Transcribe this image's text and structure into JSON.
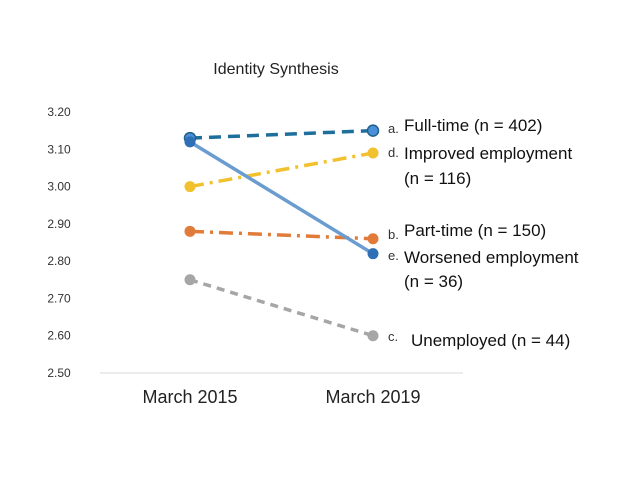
{
  "chart_data": {
    "type": "line",
    "title": "Identity Synthesis",
    "categories": [
      "March 2015",
      "March 2019"
    ],
    "ylim": [
      2.5,
      3.2
    ],
    "yticks": [
      "3.20",
      "3.10",
      "3.00",
      "2.90",
      "2.80",
      "2.70",
      "2.60",
      "2.50"
    ],
    "grid": false,
    "series": [
      {
        "letter": "a.",
        "name_lines": [
          "Full-time (n = 402)"
        ],
        "values": [
          3.13,
          3.15
        ],
        "color": "#1f6f9c",
        "marker": "#4a90d9",
        "dash": "dashed-long"
      },
      {
        "letter": "d.",
        "name_lines": [
          "Improved employment",
          "(n = 116)"
        ],
        "values": [
          3.0,
          3.09
        ],
        "color": "#f2c12e",
        "marker": "#f2c12e",
        "dash": "dash-dot"
      },
      {
        "letter": "b.",
        "name_lines": [
          "Part-time (n = 150)"
        ],
        "values": [
          2.88,
          2.86
        ],
        "color": "#e07b39",
        "marker": "#e07b39",
        "dash": "dash-dot"
      },
      {
        "letter": "e.",
        "name_lines": [
          "Worsened employment",
          "(n = 36)"
        ],
        "values": [
          3.12,
          2.82
        ],
        "color": "#6a9ccf",
        "marker": "#2e6fb5",
        "dash": "solid"
      },
      {
        "letter": "c.",
        "name_lines": [
          "Unemployed (n = 44)"
        ],
        "values": [
          2.75,
          2.6
        ],
        "color": "#a6a6a6",
        "marker": "#a6a6a6",
        "dash": "dashed"
      }
    ]
  }
}
